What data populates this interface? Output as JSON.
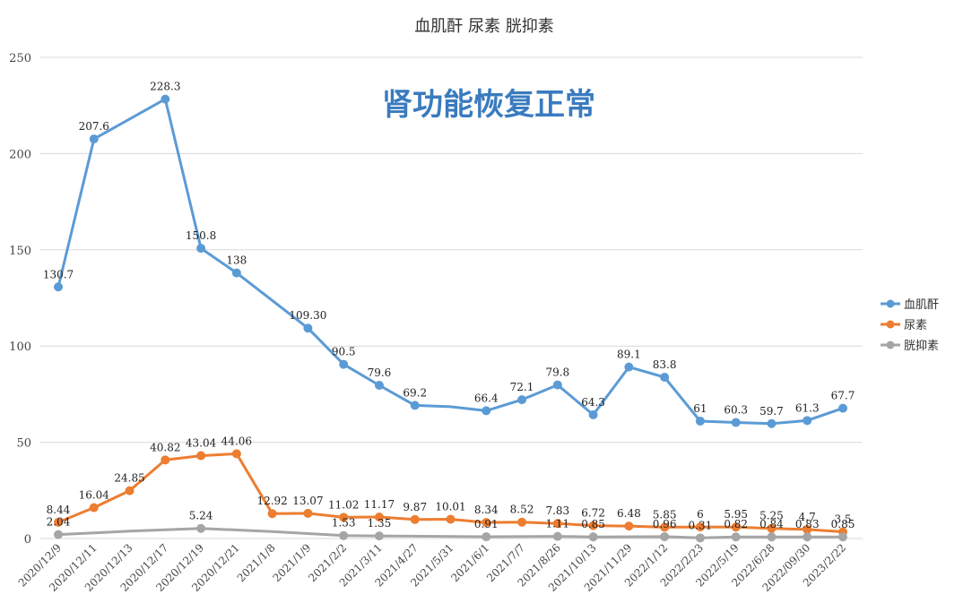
{
  "chart_data": {
    "type": "line",
    "title": "血肌酐 尿素 胱抑素",
    "annotation": "肾功能恢复正常",
    "ylim": [
      0,
      250
    ],
    "yticks": [
      0,
      50,
      100,
      150,
      200,
      250
    ],
    "grid": true,
    "legend_position": "right",
    "categories": [
      "2020/12/9",
      "2020/12/11",
      "2020/12/13",
      "2020/12/17",
      "2020/12/19",
      "2020/12/21",
      "2021/1/8",
      "2021/1/9",
      "2021/2/2",
      "2021/3/11",
      "2021/4/27",
      "2021/5/31",
      "2021/6/1",
      "2021/7/7",
      "2021/8/26",
      "2021/10/13",
      "2021/11/29",
      "2022/1/12",
      "2022/2/23",
      "2022/5/19",
      "2022/6/28",
      "2022/09/30",
      "2023/2/22"
    ],
    "x": [
      0,
      1,
      2,
      3,
      4,
      5,
      6,
      7,
      8,
      9,
      10,
      11,
      12,
      13,
      14,
      15,
      16,
      17,
      18,
      19,
      20,
      21,
      22
    ],
    "series": [
      {
        "name": "血肌酐",
        "color": "#5b9bd5",
        "x": [
          0,
          1,
          3,
          4,
          5,
          7,
          8,
          9,
          10,
          11,
          12,
          13,
          14,
          15,
          16,
          17,
          18,
          19,
          20,
          21,
          22
        ],
        "values": [
          130.7,
          207.6,
          228.3,
          150.8,
          138,
          109.3,
          90.5,
          79.6,
          69.2,
          68.5,
          66.4,
          72.1,
          79.8,
          64.3,
          89.1,
          83.8,
          61,
          60.3,
          59.7,
          61.3,
          67.7
        ],
        "labels": [
          "130.7",
          "207.6",
          "228.3",
          "150.8",
          "138",
          "109.30",
          "90.5",
          "79.6",
          "69.2",
          "",
          "66.4",
          "72.1",
          "79.8",
          "64.3",
          "89.1",
          "83.8",
          "61",
          "60.3",
          "59.7",
          "61.3",
          "67.7"
        ],
        "markers": [
          true,
          true,
          true,
          true,
          true,
          true,
          true,
          true,
          true,
          false,
          true,
          true,
          true,
          true,
          true,
          true,
          true,
          true,
          true,
          true,
          true
        ]
      },
      {
        "name": "尿素",
        "color": "#ed7d31",
        "x": [
          0,
          1,
          2,
          3,
          4,
          5,
          6,
          7,
          8,
          9,
          10,
          11,
          12,
          13,
          14,
          15,
          16,
          17,
          18,
          19,
          20,
          21,
          22
        ],
        "values": [
          8.44,
          16.04,
          24.85,
          40.82,
          43.04,
          44.06,
          12.92,
          13.07,
          11.02,
          11.17,
          9.87,
          10.01,
          8.34,
          8.52,
          7.83,
          6.72,
          6.48,
          5.85,
          6,
          5.95,
          5.25,
          4.7,
          3.5
        ],
        "labels": [
          "8.44",
          "16.04",
          "24.85",
          "40.82",
          "43.04",
          "44.06",
          "12.92",
          "13.07",
          "11.02",
          "11.17",
          "9.87",
          "10.01",
          "8.34",
          "8.52",
          "7.83",
          "6.72",
          "6.48",
          "5.85",
          "6",
          "5.95",
          "5.25",
          "4.7",
          "3.5"
        ],
        "markers": [
          true,
          true,
          true,
          true,
          true,
          true,
          true,
          true,
          true,
          true,
          true,
          true,
          true,
          true,
          true,
          true,
          true,
          true,
          true,
          true,
          true,
          true,
          true
        ]
      },
      {
        "name": "胱抑素",
        "color": "#a5a5a5",
        "x": [
          0,
          2,
          4,
          6,
          8,
          9,
          12,
          14,
          15,
          17,
          18,
          19,
          20,
          21,
          22
        ],
        "values": [
          2.04,
          3.8,
          5.24,
          3.6,
          1.53,
          1.35,
          0.91,
          1.11,
          0.85,
          0.96,
          0.31,
          0.82,
          0.84,
          0.83,
          0.85
        ],
        "labels": [
          "2.04",
          "",
          "5.24",
          "",
          "1.53",
          "1.35",
          "0.91",
          "1.11",
          "0.85",
          "0.96",
          "0.31",
          "0.82",
          "0.84",
          "0.83",
          "0.85"
        ],
        "markers": [
          true,
          false,
          true,
          false,
          true,
          true,
          true,
          true,
          true,
          true,
          true,
          true,
          true,
          true,
          true
        ]
      }
    ]
  }
}
